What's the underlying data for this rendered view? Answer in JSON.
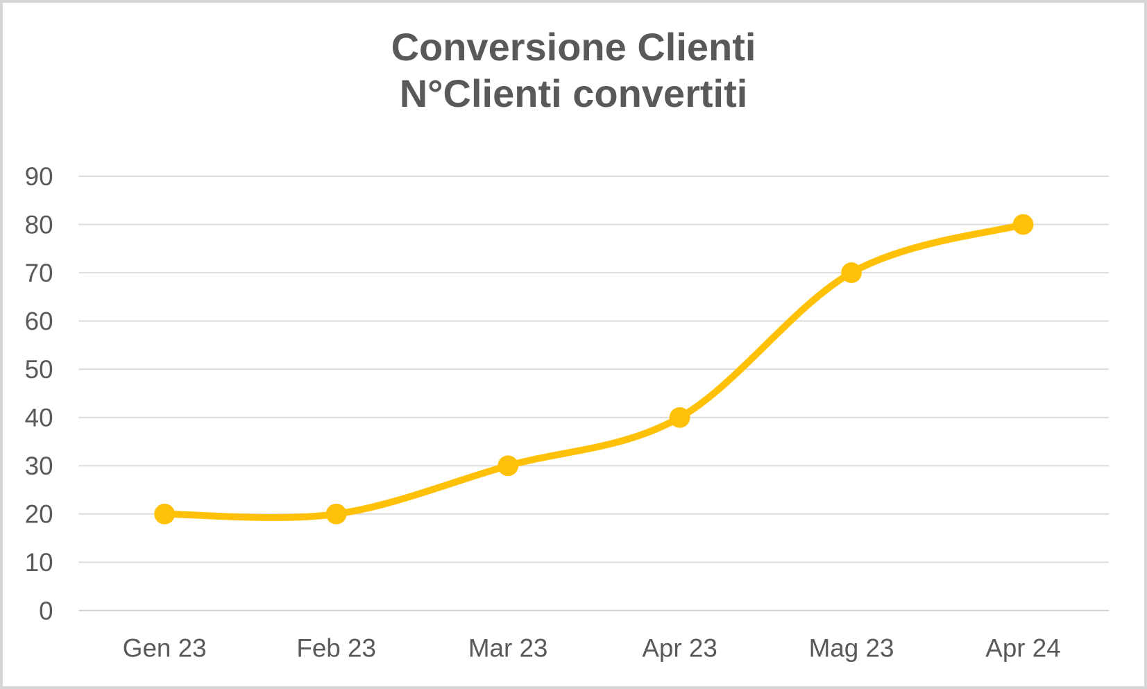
{
  "chart_title": {
    "line1": "Conversione Clienti",
    "line2": "N°Clienti convertiti"
  },
  "chart_data": {
    "type": "line",
    "title": "Conversione Clienti",
    "subtitle": "N°Clienti convertiti",
    "categories": [
      "Gen 23",
      "Feb 23",
      "Mar 23",
      "Apr 23",
      "Mag 23",
      "Apr 24"
    ],
    "series": [
      {
        "name": "N°Clienti convertiti",
        "values": [
          20,
          20,
          30,
          40,
          70,
          80
        ]
      }
    ],
    "xlabel": "",
    "ylabel": "",
    "ylim": [
      0,
      90
    ],
    "yticks": [
      0,
      10,
      20,
      30,
      40,
      50,
      60,
      70,
      80,
      90
    ],
    "grid": true,
    "legend": false,
    "smooth": true,
    "marker": "circle",
    "line_color": "#FFC107",
    "marker_color": "#FFC107",
    "gridline_color": "#DCDCDC",
    "axis_line_color": "#D0D0D0",
    "text_color": "#595959",
    "title_color": "#595959",
    "frame_color": "#D6D6D6",
    "background_color": "#FFFFFF"
  }
}
